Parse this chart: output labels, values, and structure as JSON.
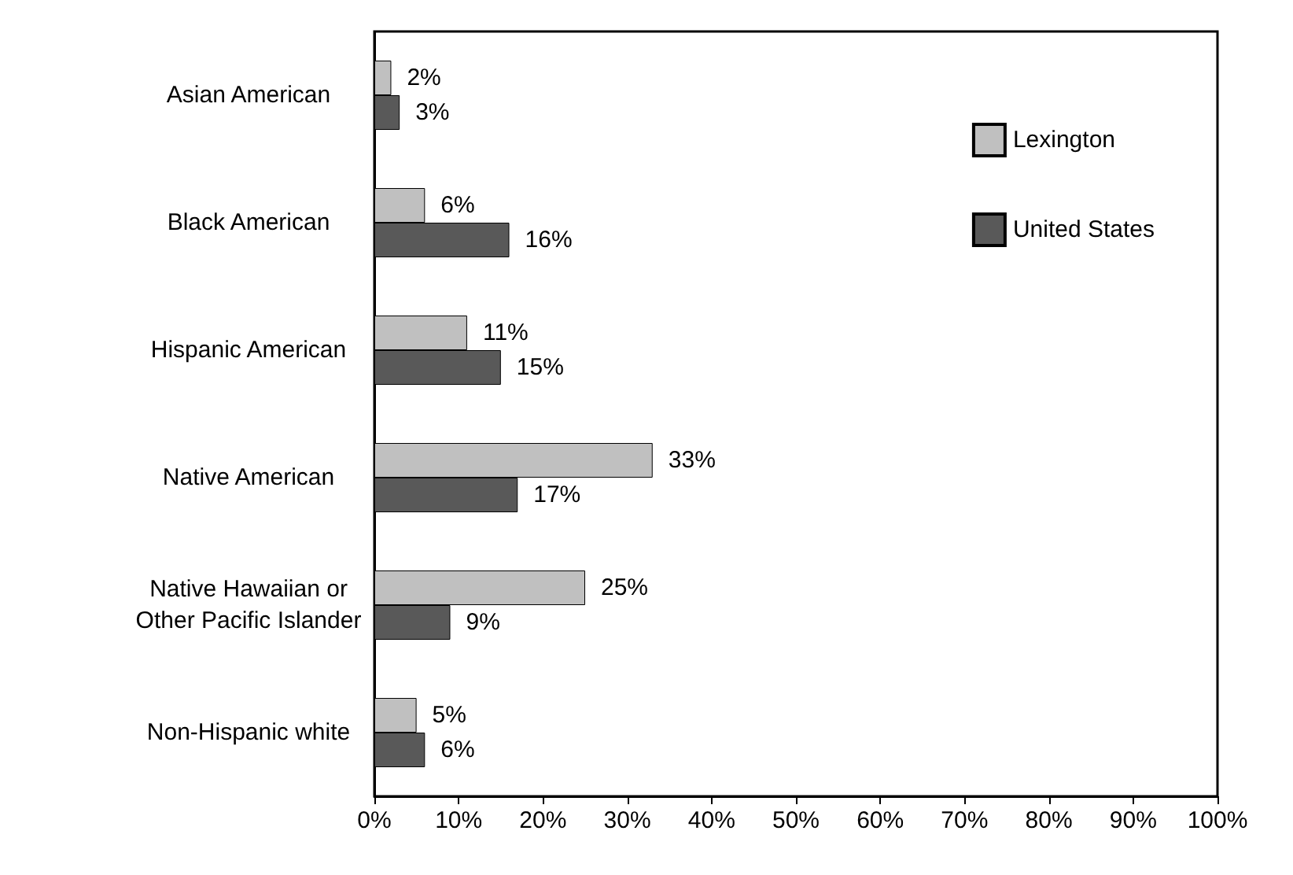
{
  "chart_data": {
    "type": "bar",
    "orientation": "horizontal",
    "categories": [
      "Asian American",
      "Black American",
      "Hispanic American",
      "Native American",
      "Native Hawaiian or\nOther Pacific Islander",
      "Non-Hispanic white"
    ],
    "series": [
      {
        "name": "Lexington",
        "color": "#c0c0c0",
        "values": [
          2,
          6,
          11,
          33,
          25,
          5
        ],
        "value_labels": [
          "2%",
          "6%",
          "11%",
          "33%",
          "25%",
          "5%"
        ]
      },
      {
        "name": "United States",
        "color": "#595959",
        "values": [
          3,
          16,
          15,
          17,
          9,
          6
        ],
        "value_labels": [
          "3%",
          "16%",
          "15%",
          "17%",
          "9%",
          "6%"
        ]
      }
    ],
    "xlim": [
      0,
      100
    ],
    "xticks": [
      {
        "value": 0,
        "label": "0%"
      },
      {
        "value": 10,
        "label": "10%"
      },
      {
        "value": 20,
        "label": "20%"
      },
      {
        "value": 30,
        "label": "30%"
      },
      {
        "value": 40,
        "label": "40%"
      },
      {
        "value": 50,
        "label": "50%"
      },
      {
        "value": 60,
        "label": "60%"
      },
      {
        "value": 70,
        "label": "70%"
      },
      {
        "value": 80,
        "label": "80%"
      },
      {
        "value": 90,
        "label": "90%"
      },
      {
        "value": 100,
        "label": "100%"
      }
    ],
    "grid": false,
    "legend": "top right"
  }
}
